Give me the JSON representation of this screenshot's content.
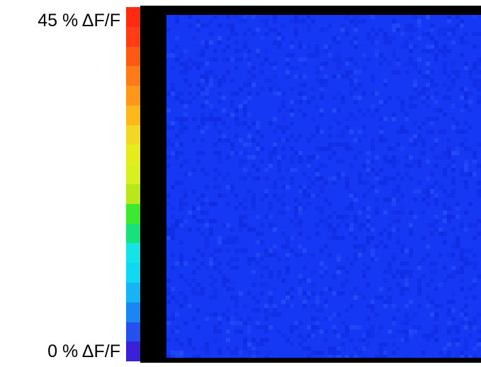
{
  "colorbar": {
    "max_label": "45 % ΔF/F",
    "min_label": "0 % ΔF/F",
    "max_value_percent": 45,
    "min_value_percent": 0,
    "unit": "ΔF/F",
    "colors": [
      "#ff2a10",
      "#ff3c12",
      "#ff5a14",
      "#ff7a18",
      "#ff981a",
      "#ffb81c",
      "#f2d822",
      "#e6ec1c",
      "#d8f01e",
      "#b8e81c",
      "#3ce830",
      "#18e07a",
      "#14e4e6",
      "#10d8f0",
      "#16b4f4",
      "#1a86f2",
      "#2450ee",
      "#3a20d6"
    ]
  },
  "image": {
    "dominant_color": "#1438f4",
    "mottle_dark": "#0e26d8",
    "mottle_light": "#2f5cf8",
    "frame_color": "#000000"
  }
}
